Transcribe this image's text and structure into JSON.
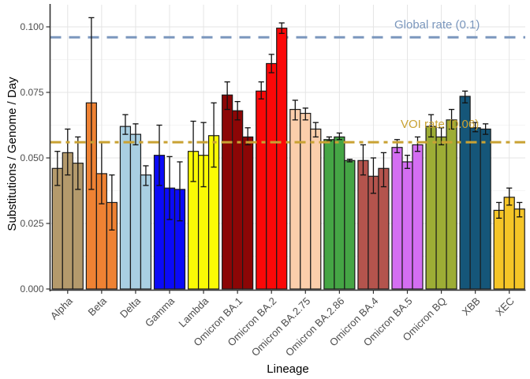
{
  "chart_data": {
    "type": "bar",
    "title": "",
    "xlabel": "Lineage",
    "ylabel": "Substitutions / Genome / Day",
    "ylim": [
      0,
      0.105
    ],
    "grid": true,
    "legend": "none",
    "bars_per_group": 3,
    "error_bars": true,
    "yticks": [
      0,
      0.025,
      0.05,
      0.075,
      0.1
    ],
    "ytick_labels": [
      "0.000",
      "0.025",
      "0.050",
      "0.075",
      "0.100"
    ],
    "categories": [
      "Alpha",
      "Beta",
      "Delta",
      "Gamma",
      "Lambda",
      "Omicron BA.1",
      "Omicron BA.2",
      "Omicron BA.2.75",
      "Omicron BA.2.86",
      "Omicron BA.4",
      "Omicron BA.5",
      "Omicron BQ",
      "XBB",
      "XEC"
    ],
    "groups": [
      {
        "lineage": "Alpha",
        "color": "#b49a6c",
        "bars": [
          {
            "value": 0.046,
            "lo": 0.0395,
            "hi": 0.0525
          },
          {
            "value": 0.052,
            "lo": 0.0435,
            "hi": 0.061
          },
          {
            "value": 0.048,
            "lo": 0.038,
            "hi": 0.058
          }
        ]
      },
      {
        "lineage": "Beta",
        "color": "#ef8233",
        "bars": [
          {
            "value": 0.071,
            "lo": 0.038,
            "hi": 0.1035
          },
          {
            "value": 0.044,
            "lo": 0.0325,
            "hi": 0.056
          },
          {
            "value": 0.033,
            "lo": 0.0225,
            "hi": 0.0435
          }
        ]
      },
      {
        "lineage": "Delta",
        "color": "#a9cfe2",
        "bars": [
          {
            "value": 0.062,
            "lo": 0.059,
            "hi": 0.0665
          },
          {
            "value": 0.059,
            "lo": 0.055,
            "hi": 0.063
          },
          {
            "value": 0.0435,
            "lo": 0.0395,
            "hi": 0.047
          }
        ]
      },
      {
        "lineage": "Gamma",
        "color": "#0b0bf7",
        "bars": [
          {
            "value": 0.051,
            "lo": 0.0395,
            "hi": 0.0625
          },
          {
            "value": 0.0385,
            "lo": 0.0265,
            "hi": 0.0505
          },
          {
            "value": 0.038,
            "lo": 0.026,
            "hi": 0.0485
          }
        ]
      },
      {
        "lineage": "Lambda",
        "color": "#fbfb05",
        "bars": [
          {
            "value": 0.0525,
            "lo": 0.041,
            "hi": 0.064
          },
          {
            "value": 0.051,
            "lo": 0.039,
            "hi": 0.0635
          },
          {
            "value": 0.0585,
            "lo": 0.0465,
            "hi": 0.071
          }
        ]
      },
      {
        "lineage": "Omicron BA.1",
        "color": "#8c0606",
        "bars": [
          {
            "value": 0.074,
            "lo": 0.0685,
            "hi": 0.079
          },
          {
            "value": 0.068,
            "lo": 0.0645,
            "hi": 0.0715
          },
          {
            "value": 0.058,
            "lo": 0.055,
            "hi": 0.0615
          }
        ]
      },
      {
        "lineage": "Omicron BA.2",
        "color": "#fb0808",
        "bars": [
          {
            "value": 0.0755,
            "lo": 0.0725,
            "hi": 0.079
          },
          {
            "value": 0.086,
            "lo": 0.0825,
            "hi": 0.0895
          },
          {
            "value": 0.0995,
            "lo": 0.0975,
            "hi": 0.1015
          }
        ]
      },
      {
        "lineage": "Omicron BA.2.75",
        "color": "#fbceab",
        "bars": [
          {
            "value": 0.0685,
            "lo": 0.0645,
            "hi": 0.072
          },
          {
            "value": 0.067,
            "lo": 0.0645,
            "hi": 0.069
          },
          {
            "value": 0.061,
            "lo": 0.058,
            "hi": 0.0635
          }
        ]
      },
      {
        "lineage": "Omicron BA.2.86",
        "color": "#45a545",
        "bars": [
          {
            "value": 0.057,
            "lo": 0.0565,
            "hi": 0.058
          },
          {
            "value": 0.058,
            "lo": 0.057,
            "hi": 0.0595
          },
          {
            "value": 0.049,
            "lo": 0.0485,
            "hi": 0.0495
          }
        ]
      },
      {
        "lineage": "Omicron BA.4",
        "color": "#b4544d",
        "bars": [
          {
            "value": 0.049,
            "lo": 0.0435,
            "hi": 0.055
          },
          {
            "value": 0.043,
            "lo": 0.0365,
            "hi": 0.05
          },
          {
            "value": 0.046,
            "lo": 0.039,
            "hi": 0.052
          }
        ]
      },
      {
        "lineage": "Omicron BA.5",
        "color": "#d46ef2",
        "bars": [
          {
            "value": 0.054,
            "lo": 0.052,
            "hi": 0.057
          },
          {
            "value": 0.0485,
            "lo": 0.046,
            "hi": 0.051
          },
          {
            "value": 0.055,
            "lo": 0.0525,
            "hi": 0.058
          }
        ]
      },
      {
        "lineage": "Omicron BQ",
        "color": "#9dad35",
        "bars": [
          {
            "value": 0.062,
            "lo": 0.058,
            "hi": 0.0665
          },
          {
            "value": 0.058,
            "lo": 0.055,
            "hi": 0.0615
          },
          {
            "value": 0.0645,
            "lo": 0.061,
            "hi": 0.0685
          }
        ]
      },
      {
        "lineage": "XBB",
        "color": "#155679",
        "bars": [
          {
            "value": 0.0735,
            "lo": 0.071,
            "hi": 0.0755
          },
          {
            "value": 0.0615,
            "lo": 0.06,
            "hi": 0.0635
          },
          {
            "value": 0.061,
            "lo": 0.059,
            "hi": 0.063
          }
        ]
      },
      {
        "lineage": "XEC",
        "color": "#f5c527",
        "bars": [
          {
            "value": 0.03,
            "lo": 0.027,
            "hi": 0.033
          },
          {
            "value": 0.035,
            "lo": 0.032,
            "hi": 0.0385
          },
          {
            "value": 0.0305,
            "lo": 0.0275,
            "hi": 0.033
          }
        ]
      }
    ],
    "reference_lines": [
      {
        "label": "Global rate (0.1)",
        "value": 0.096,
        "color": "#7b97bd",
        "style": "dashed"
      },
      {
        "label": "VOI rate (0.06)",
        "value": 0.056,
        "color": "#c9a233",
        "style": "twodash"
      }
    ],
    "colors": {
      "gridline_major": "#e4e4e4",
      "gridline_minor": "#f2f2f2",
      "axis_line": "#333333",
      "tick_label": "#4d4d4d",
      "bar_outline": "#1a1a1a"
    }
  }
}
